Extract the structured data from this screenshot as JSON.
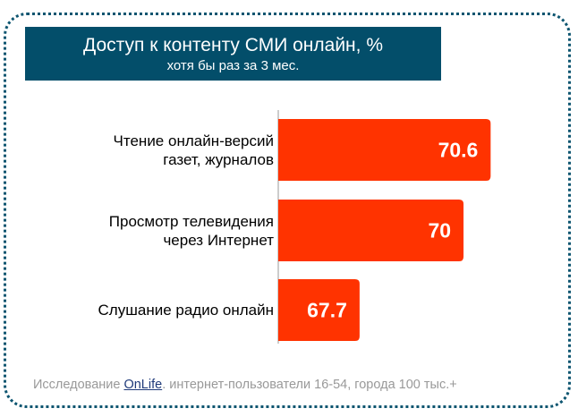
{
  "chart_data": {
    "type": "bar",
    "orientation": "horizontal",
    "title": "Доступ к контенту СМИ онлайн, %",
    "subtitle": "хотя бы раз за 3 мес.",
    "categories": [
      "Чтение онлайн-версий газет, журналов",
      "Просмотр телевидения через Интернет",
      "Слушание радио онлайн"
    ],
    "category_lines": [
      [
        "Чтение онлайн-версий",
        "газет, журналов"
      ],
      [
        "Просмотр телевидения",
        "через Интернет"
      ],
      [
        "Слушание радио онлайн"
      ]
    ],
    "values": [
      70.6,
      70,
      67.7
    ],
    "value_labels": [
      "70.6",
      "70",
      "67.7"
    ],
    "xlim": [
      65.9,
      72
    ],
    "bar_color": "#ff3300",
    "grid": false
  },
  "footer": {
    "prefix": "Исследование ",
    "link": "OnLife",
    "suffix": ". интернет-пользователи 16-54, города 100 тыс.+"
  }
}
